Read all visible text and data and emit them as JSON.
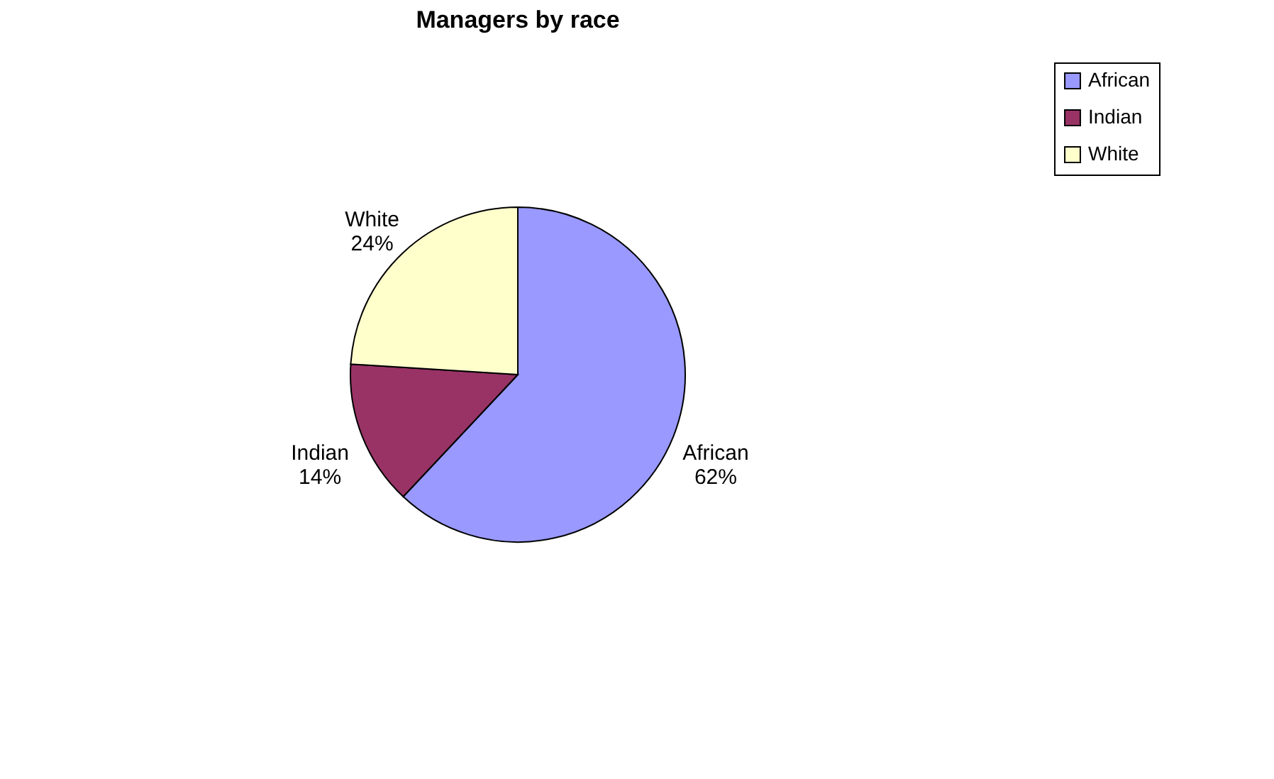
{
  "chart_data": {
    "type": "pie",
    "title": "Managers by race",
    "categories": [
      "African",
      "Indian",
      "White"
    ],
    "values": [
      62,
      14,
      24
    ],
    "value_labels": [
      "62%",
      "14%",
      "24%"
    ],
    "colors": [
      "#9999ff",
      "#993366",
      "#ffffcc"
    ],
    "legend": "right"
  }
}
